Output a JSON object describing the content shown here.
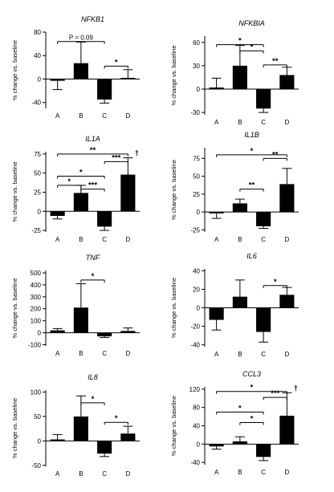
{
  "y_label_text": "% change vs. baseline",
  "chart_data": [
    {
      "type": "bar",
      "title": "NFKB1",
      "ylabel": "% change vs. baseline",
      "categories": [
        "A",
        "B",
        "C",
        "D"
      ],
      "values": [
        -3,
        27,
        -35,
        2
      ],
      "errors": [
        15,
        36,
        6,
        14
      ],
      "ylim": [
        -50,
        80
      ],
      "yticks": [
        -40,
        0,
        40,
        80
      ],
      "annotations": [
        {
          "from": "A",
          "to": "C",
          "y": 64,
          "label": "P = 0.09"
        },
        {
          "from": "C",
          "to": "D",
          "y": 22,
          "label": "*"
        }
      ]
    },
    {
      "type": "bar",
      "title": "NFKBIA",
      "ylabel": "% change vs. baseline",
      "categories": [
        "A",
        "B",
        "C",
        "D"
      ],
      "values": [
        2,
        30,
        -25,
        18
      ],
      "errors": [
        12,
        26,
        5,
        10
      ],
      "ylim": [
        -33,
        68
      ],
      "yticks": [
        -30,
        0,
        30,
        60
      ],
      "annotations": [
        {
          "from": "A",
          "to": "C",
          "y": 57,
          "label": "*"
        },
        {
          "from": "B",
          "to": "C",
          "y": 49,
          "label": "*"
        },
        {
          "from": "C",
          "to": "D",
          "y": 31,
          "label": "**"
        }
      ]
    },
    {
      "type": "bar",
      "title": "IL1A",
      "ylabel": "% change vs. baseline",
      "categories": [
        "A",
        "B",
        "C",
        "D"
      ],
      "values": [
        -6,
        24,
        -20,
        48
      ],
      "errors": [
        4,
        10,
        5,
        22
      ],
      "ylim": [
        -27,
        78
      ],
      "yticks": [
        -25,
        0,
        25,
        50,
        75
      ],
      "annotations": [
        {
          "from": "A",
          "to": "D",
          "y": 75,
          "label": "**"
        },
        {
          "from": "A",
          "to": "C",
          "y": 46,
          "label": "*"
        },
        {
          "from": "C",
          "to": "D",
          "y": 65,
          "label": "***"
        },
        {
          "from": "A",
          "to": "B",
          "y": 34,
          "label": "*"
        },
        {
          "from": "B",
          "to": "C",
          "y": 29,
          "label": "***"
        }
      ],
      "marker": {
        "at": "D",
        "label": "†"
      }
    },
    {
      "type": "bar",
      "title": "IL1B",
      "ylabel": "% change vs. baseline",
      "categories": [
        "A",
        "B",
        "C",
        "D"
      ],
      "values": [
        -2,
        12,
        -20,
        39
      ],
      "errors": [
        7,
        6,
        3,
        22
      ],
      "ylim": [
        -28,
        90
      ],
      "yticks": [
        -25,
        0,
        25,
        50,
        75
      ],
      "annotations": [
        {
          "from": "A",
          "to": "D",
          "y": 80,
          "label": "*"
        },
        {
          "from": "C",
          "to": "D",
          "y": 75,
          "label": "**"
        },
        {
          "from": "B",
          "to": "C",
          "y": 32,
          "label": "**"
        }
      ]
    },
    {
      "type": "bar",
      "title": "TNF",
      "ylabel": "% change vs. baseline",
      "categories": [
        "A",
        "B",
        "C",
        "D"
      ],
      "values": [
        20,
        210,
        -30,
        15
      ],
      "errors": [
        15,
        200,
        10,
        25
      ],
      "ylim": [
        -110,
        520
      ],
      "yticks": [
        -100,
        0,
        100,
        200,
        300,
        400,
        500
      ],
      "annotations": [
        {
          "from": "B",
          "to": "C",
          "y": 440,
          "label": "*"
        }
      ]
    },
    {
      "type": "bar",
      "title": "IL6",
      "ylabel": "% change vs. baseline",
      "categories": [
        "A",
        "B",
        "C",
        "D"
      ],
      "values": [
        -13,
        12,
        -26,
        14
      ],
      "errors": [
        11,
        18,
        11,
        8
      ],
      "ylim": [
        -42,
        42
      ],
      "yticks": [
        -40,
        -20,
        0,
        20,
        40
      ],
      "annotations": [
        {
          "from": "C",
          "to": "D",
          "y": 24,
          "label": "*"
        }
      ]
    },
    {
      "type": "bar",
      "title": "IL8",
      "ylabel": "% change vs. baseline",
      "categories": [
        "A",
        "B",
        "C",
        "D"
      ],
      "values": [
        3,
        50,
        -26,
        15
      ],
      "errors": [
        10,
        42,
        6,
        15
      ],
      "ylim": [
        -52,
        104
      ],
      "yticks": [
        -50,
        0,
        50,
        100
      ],
      "annotations": [
        {
          "from": "B",
          "to": "C",
          "y": 78,
          "label": "*"
        },
        {
          "from": "C",
          "to": "D",
          "y": 38,
          "label": "*"
        }
      ]
    },
    {
      "type": "bar",
      "title": "CCL3",
      "ylabel": "% change vs. baseline",
      "categories": [
        "A",
        "B",
        "C",
        "D"
      ],
      "values": [
        -5,
        6,
        -28,
        62
      ],
      "errors": [
        6,
        10,
        8,
        50
      ],
      "ylim": [
        -45,
        125
      ],
      "yticks": [
        -40,
        0,
        40,
        80,
        120
      ],
      "annotations": [
        {
          "from": "A",
          "to": "D",
          "y": 115,
          "label": "*"
        },
        {
          "from": "C",
          "to": "D",
          "y": 102,
          "label": "***"
        },
        {
          "from": "A",
          "to": "C",
          "y": 70,
          "label": "*"
        },
        {
          "from": "B",
          "to": "C",
          "y": 47,
          "label": "*"
        }
      ],
      "marker": {
        "at": "D",
        "label": "†"
      }
    }
  ]
}
